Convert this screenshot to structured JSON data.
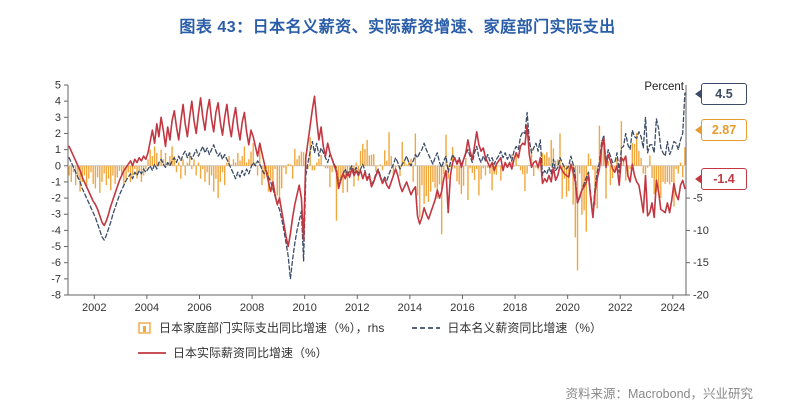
{
  "title": "图表 43：日本名义薪资、实际薪资增速、家庭部门实际支出",
  "source": "资料来源：Macrobond，兴业研究",
  "colors": {
    "title": "#2A5DA8",
    "source": "#888888",
    "axis": "#666666"
  },
  "chart_data": {
    "type": "combo",
    "frequency": "monthly",
    "x_axis": {
      "start_year": 2001,
      "start_month": 1,
      "end_year": 2024,
      "end_month": 6,
      "ticks": [
        2002,
        2004,
        2006,
        2008,
        2010,
        2012,
        2014,
        2016,
        2018,
        2020,
        2022,
        2024
      ]
    },
    "left_axis": {
      "min": -8,
      "max": 5,
      "ticks": [
        5,
        4,
        3,
        2,
        1,
        0,
        -1,
        -2,
        -3,
        -4,
        -5,
        -6,
        -7,
        -8
      ]
    },
    "right_axis": {
      "title": "Percent",
      "ratio": 2.5,
      "min": -20,
      "max": 12.5,
      "ticks": [
        -5,
        -10,
        -15,
        -20
      ]
    },
    "end_labels": [
      {
        "text": "4.5",
        "series": "nominal-wage"
      },
      {
        "text": "2.87",
        "series": "household-spending"
      },
      {
        "text": "-1.4",
        "series": "real-wage"
      }
    ],
    "series": [
      {
        "id": "household-spending",
        "name": "日本家庭部门实际支出同比增速（%），rhs",
        "type": "bar",
        "axis": "right",
        "color": "#F0A73E",
        "values": [
          -1.5,
          -2.5,
          -1.0,
          -3.0,
          -2.0,
          -4.0,
          -2.5,
          -1.5,
          -3.5,
          -2.0,
          -1.0,
          -2.8,
          -3.5,
          -1.8,
          -4.2,
          -2.5,
          -1.2,
          -3.0,
          -2.0,
          -3.8,
          -1.5,
          -2.8,
          -1.8,
          -0.8,
          -1.5,
          -3.0,
          -2.0,
          -1.0,
          -2.5,
          -1.5,
          -0.5,
          -2.0,
          -1.0,
          -2.5,
          -1.5,
          -0.5,
          1.0,
          2.5,
          1.5,
          3.0,
          2.0,
          0.5,
          2.5,
          1.0,
          2.0,
          0.5,
          1.5,
          3.0,
          1.5,
          -1.0,
          0.5,
          -2.0,
          1.0,
          -1.5,
          0.5,
          2.0,
          -0.5,
          1.0,
          -1.5,
          0.5,
          -2.0,
          -0.5,
          -2.5,
          -1.0,
          -3.0,
          -1.5,
          -4.0,
          -2.0,
          -5.0,
          -2.5,
          -1.0,
          -3.0,
          0.5,
          1.5,
          0.2,
          1.0,
          0.5,
          2.0,
          0.8,
          1.5,
          3.0,
          0.5,
          1.0,
          2.2,
          3.5,
          0.5,
          -1.5,
          2.5,
          -3.0,
          -2.0,
          -0.5,
          -4.0,
          -2.3,
          -3.8,
          -0.5,
          -4.6,
          -5.9,
          -3.5,
          -0.3,
          -1.3,
          0.3,
          0.2,
          -2.0,
          2.6,
          1.0,
          1.6,
          2.2,
          2.1,
          1.7,
          -0.5,
          4.4,
          -0.7,
          -0.7,
          0.5,
          1.1,
          1.7,
          0.0,
          -0.4,
          -0.4,
          -3.3,
          -1.0,
          -0.2,
          -8.5,
          -3.0,
          -1.9,
          -4.2,
          -2.1,
          -4.1,
          -1.9,
          -0.4,
          -3.2,
          0.5,
          -2.3,
          2.3,
          3.4,
          2.6,
          4.0,
          1.6,
          1.7,
          1.8,
          -0.9,
          -0.1,
          0.2,
          -0.7,
          2.4,
          0.8,
          5.2,
          1.5,
          -1.6,
          -0.4,
          0.1,
          -1.6,
          3.7,
          0.9,
          0.2,
          0.7,
          1.1,
          -2.5,
          5.0,
          -4.6,
          -8.0,
          -3.0,
          -5.9,
          -4.7,
          -5.6,
          -4.0,
          -2.5,
          -3.4,
          -5.1,
          -2.9,
          -10.6,
          -1.3,
          4.8,
          -2.0,
          -0.2,
          2.9,
          -0.4,
          -2.4,
          -2.9,
          -4.4,
          -3.1,
          1.2,
          -5.3,
          -0.4,
          -1.1,
          -2.2,
          -0.5,
          -4.6,
          -2.1,
          -0.4,
          -1.5,
          -0.3,
          -1.2,
          -3.8,
          -1.3,
          -1.4,
          -0.1,
          -2.3,
          -0.2,
          0.6,
          -0.3,
          0.0,
          1.7,
          -0.1,
          2.0,
          0.1,
          -0.7,
          -1.3,
          -3.9,
          -1.2,
          0.1,
          2.8,
          -1.6,
          -0.3,
          -0.6,
          0.1,
          2.0,
          1.7,
          2.1,
          1.3,
          4.0,
          2.7,
          0.8,
          1.0,
          5.0,
          -5.1,
          -2.0,
          -4.8,
          -3.9,
          -0.3,
          -6.0,
          -11.1,
          -16.2,
          -1.2,
          -7.6,
          -6.9,
          -10.2,
          1.9,
          1.1,
          -0.6,
          -6.1,
          -6.6,
          6.2,
          4.0,
          3.5,
          -5.1,
          0.7,
          -3.0,
          -1.9,
          -0.6,
          1.2,
          -0.2,
          6.9,
          1.1,
          -2.3,
          -1.7,
          -0.5,
          3.5,
          3.4,
          5.1,
          2.3,
          1.2,
          -1.2,
          -1.3,
          -0.3,
          1.6,
          -1.9,
          -4.4,
          -4.0,
          -4.2,
          -5.0,
          -2.5,
          -2.8,
          -2.5,
          -2.9,
          -2.5,
          -6.3,
          -0.5,
          -1.2,
          0.5,
          -1.8,
          2.87
        ]
      },
      {
        "id": "nominal-wage",
        "name": "日本名义薪资同比增速（%）",
        "type": "line",
        "dash": true,
        "axis": "left",
        "color": "#3D4C66",
        "width": 1.3,
        "values": [
          0.5,
          0.2,
          -0.1,
          -0.4,
          -0.7,
          -1.0,
          -1.4,
          -1.7,
          -2.0,
          -2.3,
          -2.6,
          -2.9,
          -3.2,
          -3.6,
          -4.0,
          -4.4,
          -4.6,
          -4.3,
          -3.9,
          -3.5,
          -3.0,
          -2.6,
          -2.2,
          -1.8,
          -1.5,
          -1.2,
          -0.9,
          -0.7,
          -0.5,
          -0.8,
          -0.4,
          -0.6,
          -0.3,
          -0.5,
          -0.2,
          -0.4,
          -0.2,
          0.0,
          -0.3,
          0.1,
          -0.2,
          0.2,
          0.4,
          0.1,
          -0.1,
          0.2,
          0.0,
          0.3,
          0.5,
          0.2,
          0.6,
          0.3,
          0.7,
          0.9,
          0.5,
          0.8,
          0.4,
          0.7,
          1.0,
          0.6,
          0.9,
          1.2,
          0.8,
          1.1,
          0.7,
          1.0,
          1.3,
          0.9,
          0.6,
          0.8,
          0.4,
          0.7,
          0.4,
          0.1,
          -0.2,
          -0.5,
          -0.8,
          -0.4,
          -0.7,
          -0.3,
          -0.6,
          -0.2,
          -0.5,
          -0.1,
          0.2,
          0.0,
          0.3,
          0.1,
          -0.2,
          -0.5,
          -0.3,
          -0.7,
          -1.0,
          -1.4,
          -1.9,
          -2.4,
          -2.7,
          -3.3,
          -4.0,
          -4.8,
          -5.6,
          -7.0,
          -5.8,
          -4.8,
          -4.0,
          -3.4,
          -2.8,
          -5.9,
          -0.6,
          0.2,
          0.9,
          1.5,
          0.8,
          1.4,
          0.6,
          1.1,
          0.8,
          0.5,
          0.2,
          0.7,
          0.4,
          0.1,
          -0.2,
          -1.2,
          -0.8,
          -0.5,
          -0.2,
          -0.6,
          -0.3,
          0.0,
          -0.4,
          -0.1,
          -0.5,
          -0.2,
          0.1,
          -0.3,
          -0.8,
          -0.5,
          -1.2,
          -0.9,
          -0.5,
          -0.2,
          -0.6,
          -1.0,
          -0.7,
          -0.9,
          -0.5,
          -0.2,
          0.1,
          0.5,
          0.2,
          -0.2,
          0.1,
          0.3,
          0.6,
          0.2,
          0.0,
          0.3,
          0.7,
          0.5,
          0.8,
          1.0,
          1.4,
          1.0,
          0.7,
          0.4,
          0.1,
          0.5,
          0.8,
          0.2,
          -0.1,
          0.3,
          0.6,
          -0.4,
          0.2,
          0.7,
          0.4,
          0.2,
          0.5,
          0.1,
          0.4,
          0.7,
          1.0,
          0.6,
          0.2,
          0.8,
          1.2,
          0.5,
          0.2,
          0.6,
          0.3,
          0.7,
          0.3,
          0.5,
          0.1,
          0.4,
          0.6,
          0.9,
          0.5,
          0.8,
          0.4,
          0.7,
          0.3,
          0.9,
          1.2,
          1.0,
          1.8,
          2.1,
          2.0,
          3.3,
          1.6,
          0.8,
          1.1,
          1.4,
          0.9,
          1.6,
          -0.6,
          -0.3,
          -0.5,
          -0.1,
          -0.5,
          0.4,
          -0.3,
          -0.1,
          0.5,
          0.2,
          -0.1,
          -0.2,
          0.0,
          0.6,
          0.1,
          -0.7,
          -2.3,
          -2.0,
          -1.5,
          -1.1,
          -0.7,
          -0.4,
          -1.8,
          -3.0,
          -1.3,
          -0.4,
          0.2,
          1.4,
          1.9,
          0.1,
          1.0,
          0.6,
          0.2,
          0.2,
          0.8,
          -0.4,
          1.1,
          1.2,
          2.0,
          1.3,
          1.0,
          2.2,
          1.8,
          1.7,
          2.1,
          1.8,
          1.1,
          3.0,
          0.8,
          1.3,
          1.3,
          0.8,
          2.9,
          2.3,
          1.1,
          0.8,
          0.6,
          1.5,
          0.7,
          1.0,
          1.5,
          1.4,
          1.0,
          1.6,
          2.0,
          4.5
        ]
      },
      {
        "id": "real-wage",
        "name": "日本实际薪资同比增速（%）",
        "type": "line",
        "dash": false,
        "axis": "left",
        "color": "#C23741",
        "width": 1.6,
        "values": [
          1.2,
          0.9,
          0.6,
          0.3,
          0.0,
          -0.3,
          -0.7,
          -1.0,
          -1.3,
          -1.6,
          -1.9,
          -2.2,
          -2.4,
          -2.7,
          -3.1,
          -3.5,
          -3.7,
          -3.4,
          -3.0,
          -2.5,
          -2.1,
          -1.7,
          -1.3,
          -0.9,
          -0.6,
          -0.3,
          -0.1,
          0.1,
          0.3,
          0.0,
          0.4,
          0.2,
          0.5,
          0.3,
          0.6,
          0.4,
          0.8,
          1.5,
          2.2,
          1.4,
          2.6,
          1.8,
          3.0,
          2.2,
          1.2,
          2.4,
          1.6,
          2.8,
          3.4,
          2.4,
          1.6,
          2.8,
          3.8,
          2.6,
          1.8,
          3.0,
          4.0,
          2.8,
          2.0,
          3.2,
          4.2,
          3.0,
          2.2,
          3.4,
          4.1,
          2.9,
          2.1,
          3.3,
          3.9,
          2.7,
          1.9,
          3.0,
          3.8,
          2.6,
          1.8,
          2.9,
          3.6,
          2.4,
          1.6,
          2.7,
          3.3,
          2.1,
          1.3,
          2.2,
          1.8,
          1.2,
          0.6,
          1.4,
          0.8,
          0.2,
          -0.4,
          -1.0,
          -1.6,
          -1.0,
          -1.8,
          -2.4,
          -2.0,
          -2.8,
          -3.6,
          -4.4,
          -5.0,
          -4.2,
          -3.2,
          -2.4,
          -1.8,
          -1.2,
          -2.0,
          -4.6,
          0.5,
          1.5,
          2.5,
          3.5,
          4.3,
          2.8,
          1.6,
          2.4,
          1.2,
          0.6,
          1.4,
          0.8,
          0.4,
          0.0,
          -0.4,
          -1.4,
          -0.9,
          -0.5,
          -0.8,
          -0.4,
          -0.7,
          -0.2,
          -0.6,
          -0.3,
          -0.6,
          -0.3,
          -0.8,
          -0.4,
          -0.9,
          -0.6,
          -1.3,
          -1.0,
          -0.6,
          -0.3,
          -0.7,
          -1.1,
          -0.8,
          -1.2,
          -1.4,
          -1.0,
          -0.6,
          -0.2,
          -0.6,
          -1.2,
          -1.6,
          -1.3,
          -1.0,
          -1.4,
          -1.8,
          -1.5,
          -1.3,
          -3.1,
          -3.6,
          -3.2,
          -2.6,
          -3.0,
          -3.3,
          -2.9,
          -2.5,
          -2.1,
          -1.5,
          -2.0,
          -1.6,
          -0.8,
          -0.3,
          -2.9,
          -0.6,
          0.2,
          0.5,
          0.1,
          0.4,
          -0.1,
          0.4,
          0.8,
          1.6,
          0.9,
          0.4,
          1.2,
          2.1,
          1.3,
          0.9,
          1.1,
          0.5,
          0.2,
          -0.1,
          0.2,
          -0.3,
          0.1,
          0.3,
          0.5,
          -0.3,
          0.2,
          -0.1,
          0.2,
          -0.2,
          0.4,
          0.8,
          0.5,
          1.2,
          1.4,
          1.3,
          2.5,
          0.7,
          -0.1,
          0.2,
          0.3,
          -0.1,
          0.5,
          -1.1,
          -0.8,
          -1.0,
          -0.6,
          -1.0,
          -0.1,
          -0.9,
          -0.6,
          0.0,
          -0.3,
          -0.5,
          -0.6,
          -0.7,
          0.1,
          -0.4,
          -1.0,
          -2.3,
          -1.9,
          -1.5,
          -1.3,
          -1.0,
          -0.6,
          -2.0,
          -3.2,
          -1.6,
          -0.8,
          -0.2,
          1.1,
          1.7,
          -0.1,
          0.7,
          0.3,
          -0.2,
          -0.4,
          0.0,
          -1.2,
          0.5,
          0.3,
          0.6,
          -0.6,
          -1.0,
          0.1,
          -0.6,
          -1.0,
          -1.2,
          -2.0,
          -2.9,
          -0.6,
          -3.1,
          -2.9,
          -2.3,
          -3.2,
          -0.9,
          -1.6,
          -2.7,
          -2.8,
          -2.9,
          -2.3,
          -2.9,
          -2.1,
          -1.1,
          -1.8,
          -2.1,
          -1.2,
          -0.9,
          -1.4
        ]
      }
    ]
  }
}
